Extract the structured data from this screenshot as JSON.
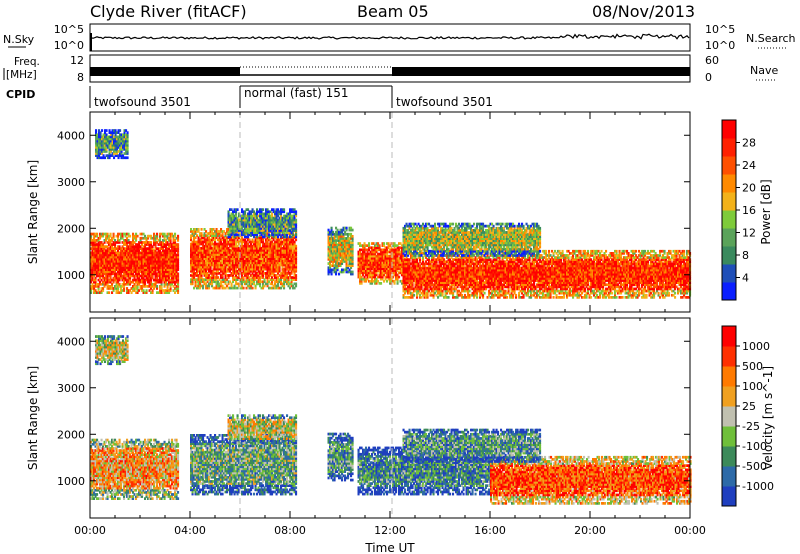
{
  "header": {
    "station": "Clyde River (fitACF)",
    "beam": "Beam 05",
    "date": "08/Nov/2013"
  },
  "status_panels": {
    "nsky": {
      "label": "N.Sky",
      "left_ticks": [
        "10^5",
        "10^0"
      ],
      "right_ticks": [
        "10^5",
        "10^0"
      ],
      "right_label": "N.Search"
    },
    "freq": {
      "label_lines": [
        "Freq.",
        "[MHz]"
      ],
      "left_ticks": [
        "12",
        "8"
      ],
      "right_ticks": [
        "60",
        "0"
      ],
      "right_label": "Nave"
    },
    "cpid": {
      "label": "CPID",
      "segments": [
        {
          "text": "twofsound 3501",
          "start_hour": 0,
          "end_hour": 6
        },
        {
          "text": "normal (fast) 151",
          "start_hour": 6,
          "end_hour": 12
        },
        {
          "text": "twofsound 3501",
          "start_hour": 12,
          "end_hour": 24
        }
      ]
    }
  },
  "chart_data": [
    {
      "type": "heatmap",
      "parameter": "power",
      "xlabel": "",
      "ylabel": "Slant Range [km]",
      "xlim_hours": [
        0,
        24
      ],
      "ylim": [
        200,
        4500
      ],
      "yticks": [
        1000,
        2000,
        3000,
        4000
      ],
      "colorbar": {
        "label": "Power [dB]",
        "range": [
          0,
          32
        ],
        "ticks": [
          "4",
          "8",
          "12",
          "16",
          "20",
          "24",
          "28"
        ],
        "colors": [
          "#0a1fff",
          "#1f4fb8",
          "#3a8a5e",
          "#5aa35a",
          "#7ecb3a",
          "#f3b21a",
          "#ff8a00",
          "#ff5000",
          "#ff2000",
          "#ff0000"
        ]
      },
      "echo_regions": [
        {
          "start_hour": 0.0,
          "end_hour": 3.5,
          "min_range": 600,
          "max_range": 1900,
          "level": 0.85
        },
        {
          "start_hour": 4.0,
          "end_hour": 8.2,
          "min_range": 700,
          "max_range": 2000,
          "level": 0.8
        },
        {
          "start_hour": 5.5,
          "end_hour": 8.2,
          "min_range": 1800,
          "max_range": 2400,
          "level": 0.3
        },
        {
          "start_hour": 9.5,
          "end_hour": 10.5,
          "min_range": 1000,
          "max_range": 2000,
          "level": 0.5
        },
        {
          "start_hour": 10.7,
          "end_hour": 12.5,
          "min_range": 800,
          "max_range": 1700,
          "level": 0.8
        },
        {
          "start_hour": 12.5,
          "end_hour": 24.0,
          "min_range": 500,
          "max_range": 1500,
          "level": 0.85
        },
        {
          "start_hour": 12.5,
          "end_hour": 18.0,
          "min_range": 1400,
          "max_range": 2100,
          "level": 0.45
        },
        {
          "start_hour": 0.2,
          "end_hour": 1.5,
          "min_range": 3500,
          "max_range": 4100,
          "level": 0.3
        }
      ]
    },
    {
      "type": "heatmap",
      "parameter": "velocity",
      "xlabel": "Time UT",
      "ylabel": "Slant Range [km]",
      "xlim_hours": [
        0,
        24
      ],
      "ylim": [
        200,
        4500
      ],
      "yticks": [
        1000,
        2000,
        3000,
        4000
      ],
      "xticks": [
        "00:00",
        "04:00",
        "08:00",
        "12:00",
        "16:00",
        "20:00",
        "00:00"
      ],
      "colorbar": {
        "label": "Velocity [m s^-1]",
        "ticks": [
          "1000",
          "500",
          "100",
          "25",
          "-25",
          "-100",
          "-500",
          "-1000"
        ],
        "colors": [
          "#1f3fbf",
          "#2d6aa8",
          "#3c8a5a",
          "#6fbf3a",
          "#c0c0b0",
          "#f0a020",
          "#ff7a00",
          "#ff3000",
          "#ff0000"
        ]
      },
      "echo_regions": [
        {
          "start_hour": 0.0,
          "end_hour": 3.5,
          "min_range": 600,
          "max_range": 1900,
          "level": 0.65
        },
        {
          "start_hour": 4.0,
          "end_hour": 8.2,
          "min_range": 700,
          "max_range": 2000,
          "level": 0.35
        },
        {
          "start_hour": 5.5,
          "end_hour": 8.2,
          "min_range": 1800,
          "max_range": 2400,
          "level": 0.5
        },
        {
          "start_hour": 9.5,
          "end_hour": 10.5,
          "min_range": 1000,
          "max_range": 2000,
          "level": 0.3
        },
        {
          "start_hour": 10.7,
          "end_hour": 16.0,
          "min_range": 700,
          "max_range": 1700,
          "level": 0.25
        },
        {
          "start_hour": 16.0,
          "end_hour": 24.0,
          "min_range": 500,
          "max_range": 1500,
          "level": 0.8
        },
        {
          "start_hour": 12.5,
          "end_hour": 18.0,
          "min_range": 1400,
          "max_range": 2100,
          "level": 0.3
        },
        {
          "start_hour": 0.2,
          "end_hour": 1.5,
          "min_range": 3500,
          "max_range": 4100,
          "level": 0.5
        }
      ]
    }
  ]
}
